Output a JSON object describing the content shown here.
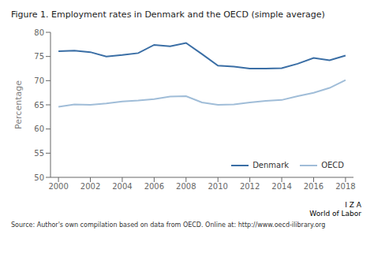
{
  "chart_data": {
    "type": "line",
    "title": "Figure 1. Employment rates in Denmark and the OECD (simple average)",
    "y_label": "Percentage",
    "annotations": [
      "Source: Author's own compilation based on data from OECD. Online at: http://www.oecd-ilibrary.org",
      "I Z A",
      "World of Labor"
    ],
    "x": [
      2000,
      2001,
      2002,
      2003,
      2004,
      2005,
      2006,
      2007,
      2008,
      2009,
      2010,
      2011,
      2012,
      2013,
      2014,
      2015,
      2016,
      2017,
      2018
    ],
    "series": [
      {
        "name": "Denmark",
        "color": "#3a6ea5",
        "values": [
          76.1,
          76.2,
          75.9,
          75.0,
          75.3,
          75.7,
          77.4,
          77.1,
          77.8,
          75.5,
          73.1,
          72.9,
          72.5,
          72.5,
          72.6,
          73.5,
          74.7,
          74.2,
          75.2
        ]
      },
      {
        "name": "OECD",
        "color": "#a0bdd8",
        "values": [
          64.6,
          65.1,
          65.0,
          65.3,
          65.7,
          65.9,
          66.2,
          66.7,
          66.8,
          65.5,
          65.0,
          65.1,
          65.5,
          65.8,
          66.0,
          66.8,
          67.5,
          68.5,
          70.1
        ]
      }
    ],
    "xlim": [
      1999.5,
      2018.5
    ],
    "xticks": [
      2000,
      2002,
      2004,
      2006,
      2008,
      2010,
      2012,
      2014,
      2016,
      2018
    ],
    "ylim": [
      50,
      80
    ],
    "yticks": [
      50,
      55,
      60,
      65,
      70,
      75,
      80
    ],
    "grid": false,
    "legend": "lower right"
  }
}
